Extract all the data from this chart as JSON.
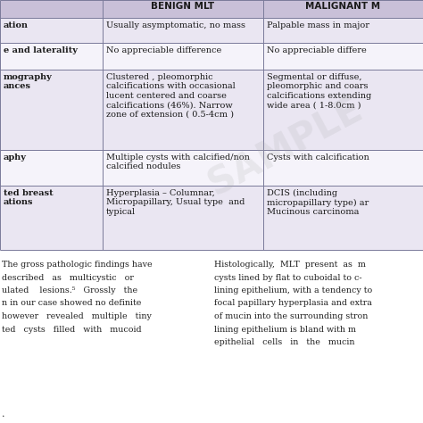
{
  "header_cols": [
    "BENIGN MLT",
    "MALIGNANT M"
  ],
  "col1_labels": [
    "ation",
    "e and laterality",
    "mography\nances",
    "aphy",
    "ted breast\nations"
  ],
  "col2_data": [
    "Usually asymptomatic, no mass",
    "No appreciable difference",
    "Clustered , pleomorphic\ncalcifications with occasional\nlucent centered and coarse\ncalcifications (46%). Narrow\nzone of extension ( 0.5-4cm )",
    "Multiple cysts with calcified/non\ncalcified nodules",
    "Hyperplasia – Columnar,\nMicropapillary, Usual type  and\ntypical"
  ],
  "col3_data": [
    "Palpable mass in major",
    "No appreciable differe",
    "Segmental or diffuse,\npleomorphic and coars\ncalcifications extending\nwide area ( 1-8.0cm )",
    "Cysts with calcification",
    "DCIS (including\nmicropapillary type) ar\nMucinous carcinoma"
  ],
  "header_bg": "#c9c0d8",
  "row_bg_odd": "#dedad0",
  "row_bg_even": "#eae6f2",
  "row_bg_white": "#f5f3fa",
  "text_color": "#1a1a1a",
  "border_color": "#7a7a9a",
  "body_left": [
    "The gross pathologic findings have",
    "described   as   multicystic   or",
    "ulated    lesions.⁵   Grossly   the",
    "n in our case showed no definite",
    "however   revealed   multiple   tiny",
    "ted   cysts   filled   with   mucoid"
  ],
  "body_right": [
    "Histologically,  MLT  present  as  m",
    "cysts lined by flat to cuboidal to c-",
    "lining epithelium, with a tendency to",
    "focal papillary hyperplasia and extra",
    "of mucin into the surrounding stron",
    "lining epithelium is bland with m",
    "epithelial   cells   in   the   mucin"
  ],
  "watermark_text": "SAMPLE",
  "figsize": [
    4.74,
    4.74
  ],
  "dpi": 100
}
